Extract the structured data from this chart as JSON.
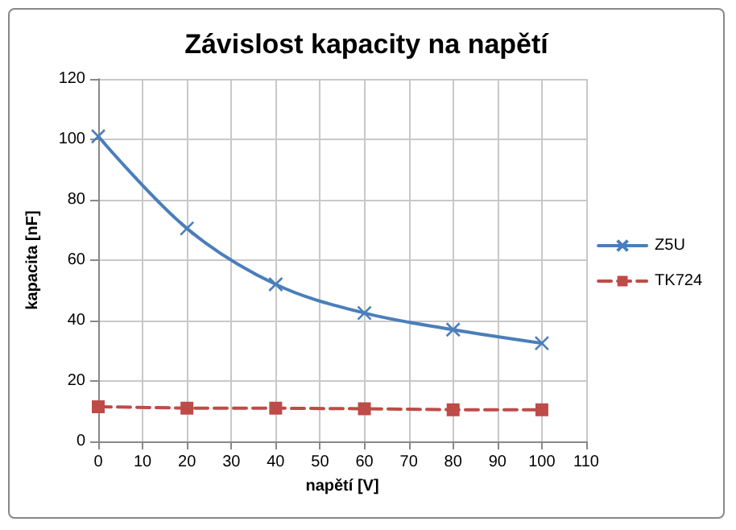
{
  "chart_data": {
    "type": "line",
    "title": "Závislost kapacity na napětí",
    "xlabel": "napětí [V]",
    "ylabel": "kapacita [nF]",
    "x": [
      0,
      20,
      40,
      60,
      80,
      100
    ],
    "series": [
      {
        "name": "Z5U",
        "color": "#4a7ebb",
        "values": [
          101,
          70.5,
          52,
          42.5,
          37,
          32.5
        ],
        "marker": "cross",
        "line_style": "solid"
      },
      {
        "name": "TK724",
        "color": "#be4b48",
        "values": [
          11.5,
          11,
          11,
          10.8,
          10.5,
          10.5
        ],
        "marker": "square",
        "line_style": "dashed"
      }
    ],
    "xlim": [
      0,
      110
    ],
    "xticks": [
      0,
      10,
      20,
      30,
      40,
      50,
      60,
      70,
      80,
      90,
      100,
      110
    ],
    "ylim": [
      0,
      120
    ],
    "yticks": [
      0,
      20,
      40,
      60,
      80,
      100,
      120
    ],
    "grid": true,
    "legend": "right"
  }
}
